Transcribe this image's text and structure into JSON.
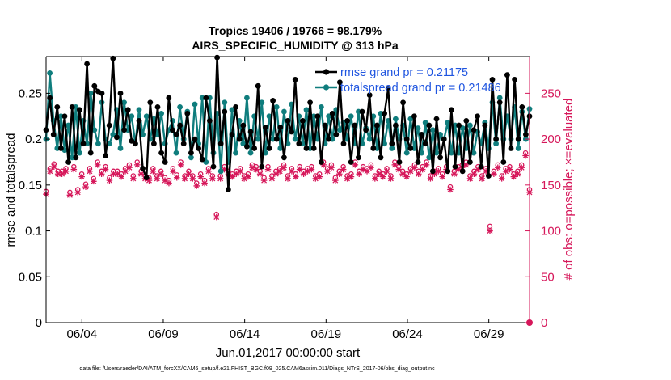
{
  "chart_data": {
    "type": "line",
    "title_line1": "Tropics 19406 / 19766 = 98.179%",
    "title_line2": "AIRS_SPECIFIC_HUMIDITY @ 313 hPa",
    "xlabel": "Jun.01,2017 00:00:00 start",
    "ylabel_left": "rmse and totalspread",
    "ylabel_right": "# of obs: o=possible; ×=evaluated",
    "footer": "data file: /Users/raeder/DAI/ATM_forcXX/CAM6_setup/f.e21.FHIST_BGC.f09_025.CAM6assim.011/Diags_NTrS_2017-06/obs_diag_output.nc",
    "x_range_days": [
      0.8,
      30.5
    ],
    "ylim_left": [
      0,
      0.29
    ],
    "ylim_right": [
      0,
      290
    ],
    "x_ticks": [
      {
        "day": 3.0,
        "label": "06/04"
      },
      {
        "day": 8.0,
        "label": "06/09"
      },
      {
        "day": 13.0,
        "label": "06/14"
      },
      {
        "day": 18.0,
        "label": "06/19"
      },
      {
        "day": 23.0,
        "label": "06/24"
      },
      {
        "day": 28.0,
        "label": "06/29"
      }
    ],
    "y_ticks_left": [
      {
        "value": 0,
        "label": "0"
      },
      {
        "value": 0.05,
        "label": "0.05"
      },
      {
        "value": 0.1,
        "label": "0.1"
      },
      {
        "value": 0.15,
        "label": "0.15"
      },
      {
        "value": 0.2,
        "label": "0.2"
      },
      {
        "value": 0.25,
        "label": "0.25"
      }
    ],
    "y_ticks_right": [
      {
        "value": 0,
        "label": "0"
      },
      {
        "value": 50,
        "label": "50"
      },
      {
        "value": 100,
        "label": "100"
      },
      {
        "value": 150,
        "label": "150"
      },
      {
        "value": 200,
        "label": "200"
      },
      {
        "value": 250,
        "label": "250"
      }
    ],
    "legend": [
      {
        "label": "rmse grand pr = 0.21175",
        "color": "#000000"
      },
      {
        "label": "totalspread grand pr = 0.21486",
        "color": "#0f7d7d"
      }
    ],
    "colors": {
      "rmse": "#000000",
      "spread": "#0f7d7d",
      "obs": "#d6175a",
      "legend_text": "#1f55e0",
      "axis_right": "#d6175a"
    },
    "series": [
      {
        "name": "rmse",
        "axis": "left",
        "values": [
          0.21,
          0.245,
          0.205,
          0.235,
          0.19,
          0.225,
          0.175,
          0.235,
          0.18,
          0.232,
          0.195,
          0.282,
          0.185,
          0.258,
          0.252,
          0.25,
          0.182,
          0.215,
          0.288,
          0.202,
          0.25,
          0.21,
          0.232,
          0.198,
          0.195,
          0.22,
          0.168,
          0.158,
          0.24,
          0.195,
          0.235,
          0.185,
          0.175,
          0.245,
          0.21,
          0.205,
          0.215,
          0.195,
          0.228,
          0.185,
          0.2,
          0.19,
          0.178,
          0.245,
          0.22,
          0.17,
          0.289,
          0.195,
          0.23,
          0.145,
          0.205,
          0.235,
          0.2,
          0.215,
          0.192,
          0.208,
          0.19,
          0.258,
          0.17,
          0.213,
          0.19,
          0.242,
          0.2,
          0.213,
          0.18,
          0.22,
          0.208,
          0.265,
          0.195,
          0.22,
          0.19,
          0.24,
          0.19,
          0.225,
          0.175,
          0.215,
          0.2,
          0.228,
          0.205,
          0.262,
          0.195,
          0.22,
          0.175,
          0.215,
          0.18,
          0.23,
          0.21,
          0.248,
          0.19,
          0.215,
          0.18,
          0.228,
          0.255,
          0.195,
          0.215,
          0.175,
          0.24,
          0.2,
          0.19,
          0.225,
          0.175,
          0.205,
          0.195,
          0.215,
          0.165,
          0.222,
          0.18,
          0.2,
          0.165,
          0.232,
          0.17,
          0.215,
          0.165,
          0.22,
          0.175,
          0.21,
          0.225,
          0.17,
          0.215,
          0.16,
          0.265,
          0.2,
          0.24,
          0.175,
          0.27,
          0.19,
          0.265,
          0.2,
          0.235,
          0.205,
          0.225
        ]
      },
      {
        "name": "totalspread",
        "axis": "left",
        "values": [
          0.2,
          0.272,
          0.22,
          0.19,
          0.225,
          0.188,
          0.215,
          0.18,
          0.235,
          0.185,
          0.22,
          0.195,
          0.25,
          0.21,
          0.195,
          0.24,
          0.2,
          0.195,
          0.205,
          0.232,
          0.19,
          0.24,
          0.21,
          0.225,
          0.195,
          0.232,
          0.205,
          0.225,
          0.2,
          0.222,
          0.205,
          0.228,
          0.195,
          0.21,
          0.22,
          0.185,
          0.235,
          0.2,
          0.23,
          0.18,
          0.238,
          0.195,
          0.245,
          0.175,
          0.245,
          0.185,
          0.228,
          0.165,
          0.24,
          0.175,
          0.232,
          0.185,
          0.22,
          0.195,
          0.245,
          0.185,
          0.225,
          0.2,
          0.24,
          0.185,
          0.225,
          0.2,
          0.235,
          0.19,
          0.23,
          0.195,
          0.238,
          0.2,
          0.225,
          0.195,
          0.232,
          0.19,
          0.225,
          0.2,
          0.235,
          0.195,
          0.225,
          0.2,
          0.232,
          0.21,
          0.218,
          0.2,
          0.225,
          0.195,
          0.23,
          0.195,
          0.212,
          0.2,
          0.225,
          0.19,
          0.228,
          0.195,
          0.22,
          0.19,
          0.222,
          0.2,
          0.215,
          0.185,
          0.222,
          0.19,
          0.212,
          0.185,
          0.218,
          0.18,
          0.21,
          0.185,
          0.205,
          0.2,
          0.218,
          0.185,
          0.215,
          0.185,
          0.212,
          0.19,
          0.215,
          0.185,
          0.208,
          0.195,
          0.218,
          0.19,
          0.24,
          0.195,
          0.245,
          0.2,
          0.225,
          0.2,
          0.235,
          0.19,
          0.23,
          0.2,
          0.233
        ]
      },
      {
        "name": "obs_possible",
        "axis": "right",
        "values": [
          143,
          168,
          173,
          165,
          165,
          168,
          142,
          170,
          145,
          162,
          151,
          168,
          157,
          175,
          165,
          170,
          158,
          165,
          165,
          162,
          168,
          172,
          160,
          175,
          165,
          160,
          158,
          168,
          160,
          165,
          158,
          155,
          168,
          161,
          175,
          160,
          165,
          160,
          152,
          162,
          155,
          168,
          160,
          118,
          160,
          170,
          165,
          162,
          165,
          168,
          160,
          162,
          172,
          170,
          165,
          158,
          170,
          160,
          165,
          168,
          172,
          160,
          168,
          162,
          170,
          165,
          168,
          170,
          160,
          162,
          175,
          168,
          172,
          158,
          165,
          170,
          160,
          162,
          175,
          165,
          170,
          168,
          172,
          160,
          165,
          162,
          168,
          160,
          175,
          170,
          165,
          162,
          168,
          172,
          165,
          170,
          175,
          160,
          165,
          168,
          162,
          170,
          148,
          165,
          170,
          172,
          175,
          160,
          165,
          170,
          160,
          168,
          105,
          165,
          172,
          160,
          168,
          170,
          162,
          165,
          172,
          185,
          145
        ]
      },
      {
        "name": "obs_evaluated",
        "axis": "right",
        "values": [
          140,
          165,
          170,
          162,
          162,
          165,
          139,
          167,
          142,
          159,
          148,
          165,
          154,
          172,
          162,
          167,
          155,
          162,
          162,
          159,
          165,
          169,
          157,
          172,
          162,
          157,
          155,
          165,
          157,
          162,
          155,
          152,
          165,
          158,
          172,
          157,
          162,
          157,
          149,
          159,
          152,
          165,
          157,
          115,
          157,
          167,
          162,
          159,
          162,
          165,
          157,
          159,
          169,
          167,
          162,
          155,
          167,
          157,
          162,
          165,
          169,
          157,
          165,
          159,
          167,
          162,
          165,
          167,
          157,
          159,
          172,
          165,
          169,
          155,
          162,
          167,
          157,
          159,
          172,
          162,
          167,
          165,
          169,
          157,
          162,
          159,
          165,
          157,
          172,
          167,
          162,
          159,
          165,
          169,
          162,
          167,
          172,
          157,
          162,
          165,
          159,
          167,
          145,
          162,
          167,
          169,
          172,
          157,
          162,
          167,
          157,
          165,
          100,
          162,
          169,
          157,
          165,
          167,
          159,
          162,
          169,
          182,
          142
        ]
      }
    ]
  }
}
